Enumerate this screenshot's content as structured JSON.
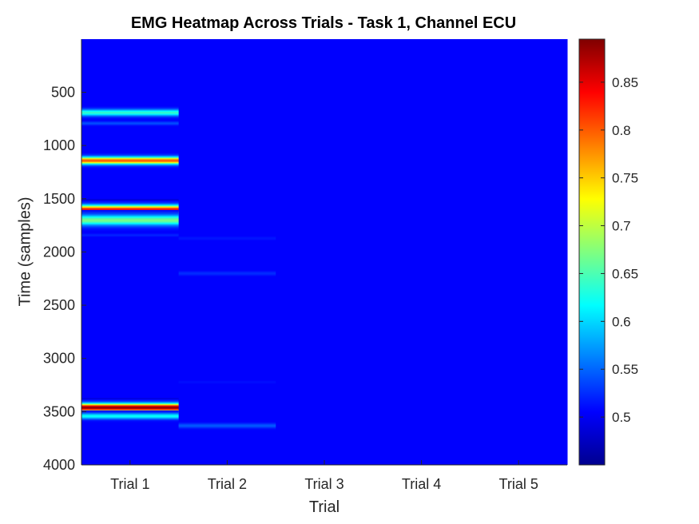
{
  "chart_data": {
    "type": "heatmap",
    "title": "EMG Heatmap Across Trials - Task 1, Channel ECU",
    "xlabel": "Trial",
    "ylabel": "Time (samples)",
    "x_categories": [
      "Trial 1",
      "Trial 2",
      "Trial 3",
      "Trial 4",
      "Trial 5"
    ],
    "y_ticks": [
      500,
      1000,
      1500,
      2000,
      2500,
      3000,
      3500,
      4000
    ],
    "ylim": [
      1,
      4000
    ],
    "y_direction": "reversed",
    "colormap": "jet",
    "colorbar": {
      "range": [
        0.45,
        0.895
      ],
      "ticks": [
        0.5,
        0.55,
        0.6,
        0.65,
        0.7,
        0.75,
        0.8,
        0.85
      ]
    },
    "background_value": 0.505,
    "bands": [
      {
        "trial": "Trial 1",
        "center": 690,
        "peak": 0.64,
        "sigma": 22
      },
      {
        "trial": "Trial 1",
        "center": 790,
        "peak": 0.54,
        "sigma": 12
      },
      {
        "trial": "Trial 1",
        "center": 1140,
        "peak": 0.8,
        "sigma": 24
      },
      {
        "trial": "Trial 1",
        "center": 1520,
        "peak": 0.47,
        "sigma": 10
      },
      {
        "trial": "Trial 1",
        "center": 1600,
        "peak": 0.83,
        "sigma": 28
      },
      {
        "trial": "Trial 1",
        "center": 1700,
        "peak": 0.67,
        "sigma": 34
      },
      {
        "trial": "Trial 1",
        "center": 1840,
        "peak": 0.52,
        "sigma": 10
      },
      {
        "trial": "Trial 1",
        "center": 3390,
        "peak": 0.46,
        "sigma": 10
      },
      {
        "trial": "Trial 1",
        "center": 3460,
        "peak": 0.89,
        "sigma": 26
      },
      {
        "trial": "Trial 1",
        "center": 3540,
        "peak": 0.62,
        "sigma": 20
      },
      {
        "trial": "Trial 2",
        "center": 1870,
        "peak": 0.515,
        "sigma": 12
      },
      {
        "trial": "Trial 2",
        "center": 2200,
        "peak": 0.525,
        "sigma": 14
      },
      {
        "trial": "Trial 2",
        "center": 3220,
        "peak": 0.512,
        "sigma": 10
      },
      {
        "trial": "Trial 2",
        "center": 3630,
        "peak": 0.545,
        "sigma": 16
      }
    ]
  }
}
